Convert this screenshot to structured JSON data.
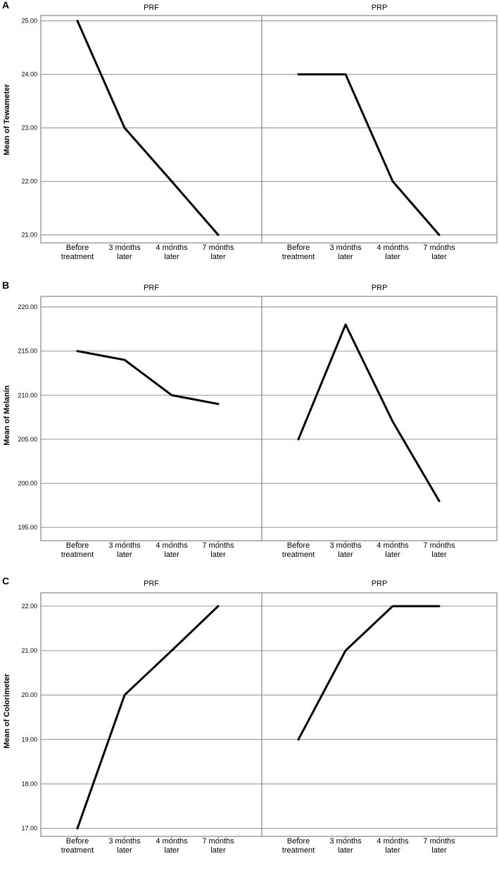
{
  "chart_data": [
    {
      "type": "line",
      "panel_label": "A",
      "ylabel": "Mean of Tewameter",
      "xlabel": "",
      "categories": [
        "Before treatment",
        "3 months later",
        "4 months later",
        "7 months later"
      ],
      "ylim": [
        20.85,
        25.1
      ],
      "yticks": [
        21,
        22,
        23,
        24,
        25
      ],
      "ytick_labels": [
        "21.00",
        "22.00",
        "23.00",
        "24.00",
        "25.00"
      ],
      "grid": true,
      "series": [
        {
          "facet": "PRF",
          "values": [
            25,
            23,
            22,
            21
          ]
        },
        {
          "facet": "PRP",
          "values": [
            24,
            24,
            22,
            21
          ]
        }
      ]
    },
    {
      "type": "line",
      "panel_label": "B",
      "ylabel": "Mean of Melanin",
      "xlabel": "",
      "categories": [
        "Before treatment",
        "3 months later",
        "4 months later",
        "7 months later"
      ],
      "ylim": [
        193.5,
        221.2
      ],
      "yticks": [
        195,
        200,
        205,
        210,
        215,
        220
      ],
      "ytick_labels": [
        "195.00",
        "200.00",
        "205.00",
        "210.00",
        "215.00",
        "220.00"
      ],
      "grid": true,
      "series": [
        {
          "facet": "PRF",
          "values": [
            215,
            214,
            210,
            209
          ]
        },
        {
          "facet": "PRP",
          "values": [
            205,
            218,
            207,
            198
          ]
        }
      ]
    },
    {
      "type": "line",
      "panel_label": "C",
      "ylabel": "Mean of Colorimeter",
      "xlabel": "",
      "categories": [
        "Before treatment",
        "3 months later",
        "4 months later",
        "7 months later"
      ],
      "ylim": [
        16.82,
        22.3
      ],
      "yticks": [
        17,
        18,
        19,
        20,
        21,
        22
      ],
      "ytick_labels": [
        "17.00",
        "18.00",
        "19.00",
        "20.00",
        "21.00",
        "22.00"
      ],
      "grid": true,
      "series": [
        {
          "facet": "PRF",
          "values": [
            17,
            20,
            21,
            22
          ]
        },
        {
          "facet": "PRP",
          "values": [
            19,
            21,
            22,
            22
          ]
        }
      ]
    }
  ],
  "x_tick_lines": [
    [
      "Before",
      "treatment"
    ],
    [
      "3 months",
      "later"
    ],
    [
      "4 months",
      "later"
    ],
    [
      "7 months",
      "later"
    ]
  ],
  "style": {
    "line_color": "#000000",
    "grid_color": "#a0a0a0",
    "frame_color": "#6e6e6e",
    "background": "#ffffff"
  }
}
